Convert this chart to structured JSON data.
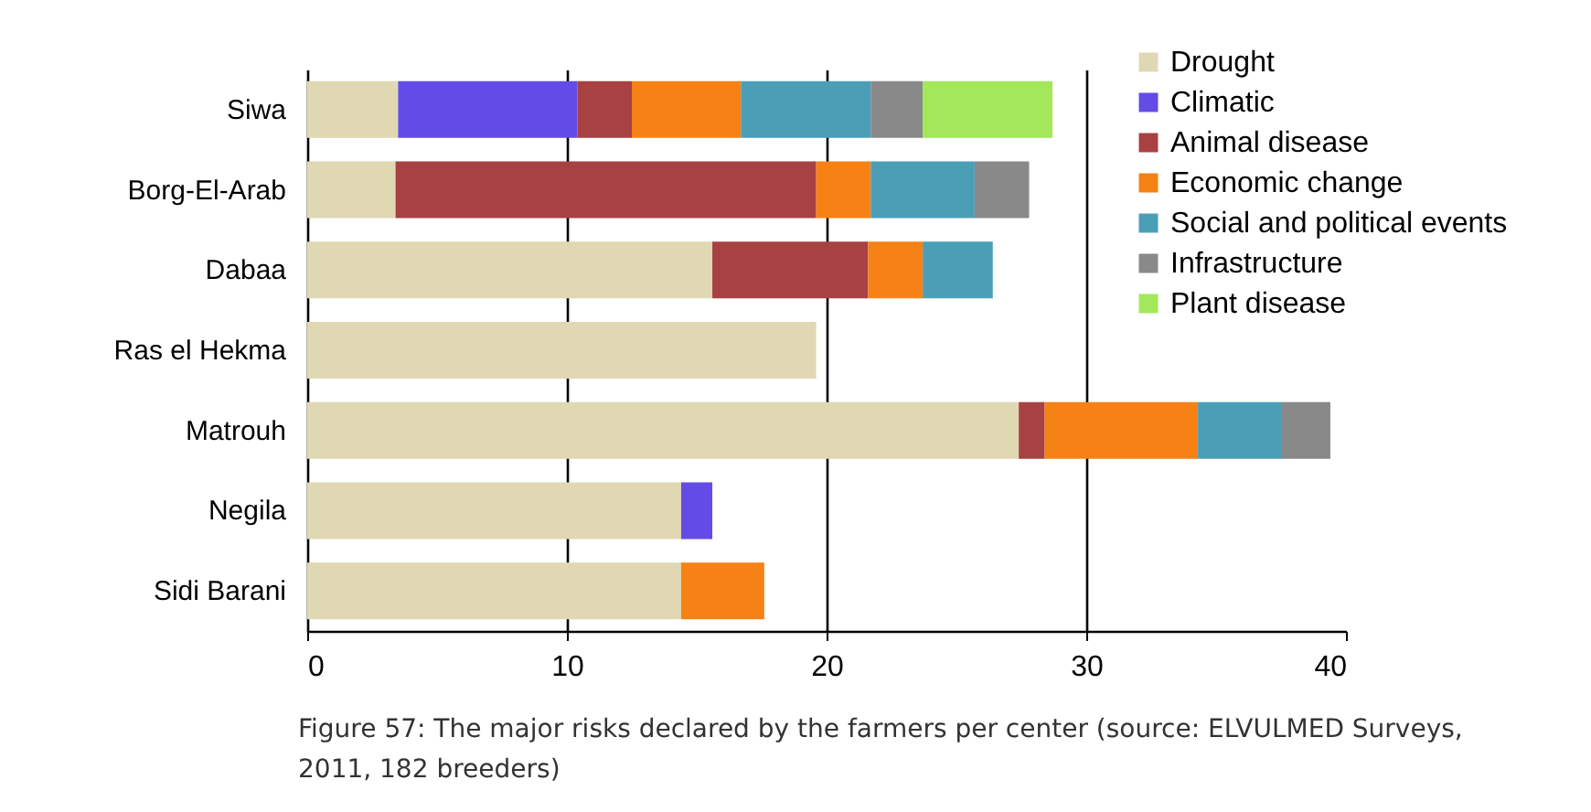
{
  "chart_data": {
    "type": "bar",
    "orientation": "horizontal",
    "stacked": true,
    "categories": [
      "Siwa",
      "Borg-El-Arab",
      "Dabaa",
      "Ras el Hekma",
      "Matrouh",
      "Negila",
      "Sidi Barani"
    ],
    "series": [
      {
        "name": "Drought",
        "color": "#dfd8b3",
        "values": [
          3.5,
          3.4,
          15.6,
          19.6,
          27.4,
          14.4,
          14.4
        ]
      },
      {
        "name": "Climatic",
        "color": "#634ce5",
        "values": [
          6.9,
          null,
          null,
          null,
          null,
          1.2,
          null
        ]
      },
      {
        "name": "Animal disease",
        "color": "#a84142",
        "values": [
          2.1,
          16.2,
          6,
          null,
          1,
          null,
          null
        ]
      },
      {
        "name": "Economic change",
        "color": "#f68114",
        "values": [
          4.2,
          2.1,
          2.1,
          null,
          5.9,
          null,
          3.2
        ]
      },
      {
        "name": "Social and political events",
        "color": "#4a9fb7",
        "values": [
          5,
          4,
          2.7,
          null,
          3.2,
          null,
          null
        ]
      },
      {
        "name": "Infrastructure",
        "color": "#898989",
        "values": [
          2,
          2.1,
          null,
          null,
          1.9,
          null,
          null
        ]
      },
      {
        "name": "Plant disease",
        "color": "#a2e85a",
        "values": [
          5,
          null,
          null,
          null,
          null,
          null,
          null
        ]
      }
    ],
    "xlim": [
      0,
      40
    ],
    "xticks": [
      0,
      10,
      20,
      30,
      40
    ],
    "grid": "x",
    "legend": "top right",
    "annotations": [
      "Figure 57: The major risks declared by the farmers per center (source: ELVULMED Surveys, 2011, 182 breeders)"
    ]
  }
}
